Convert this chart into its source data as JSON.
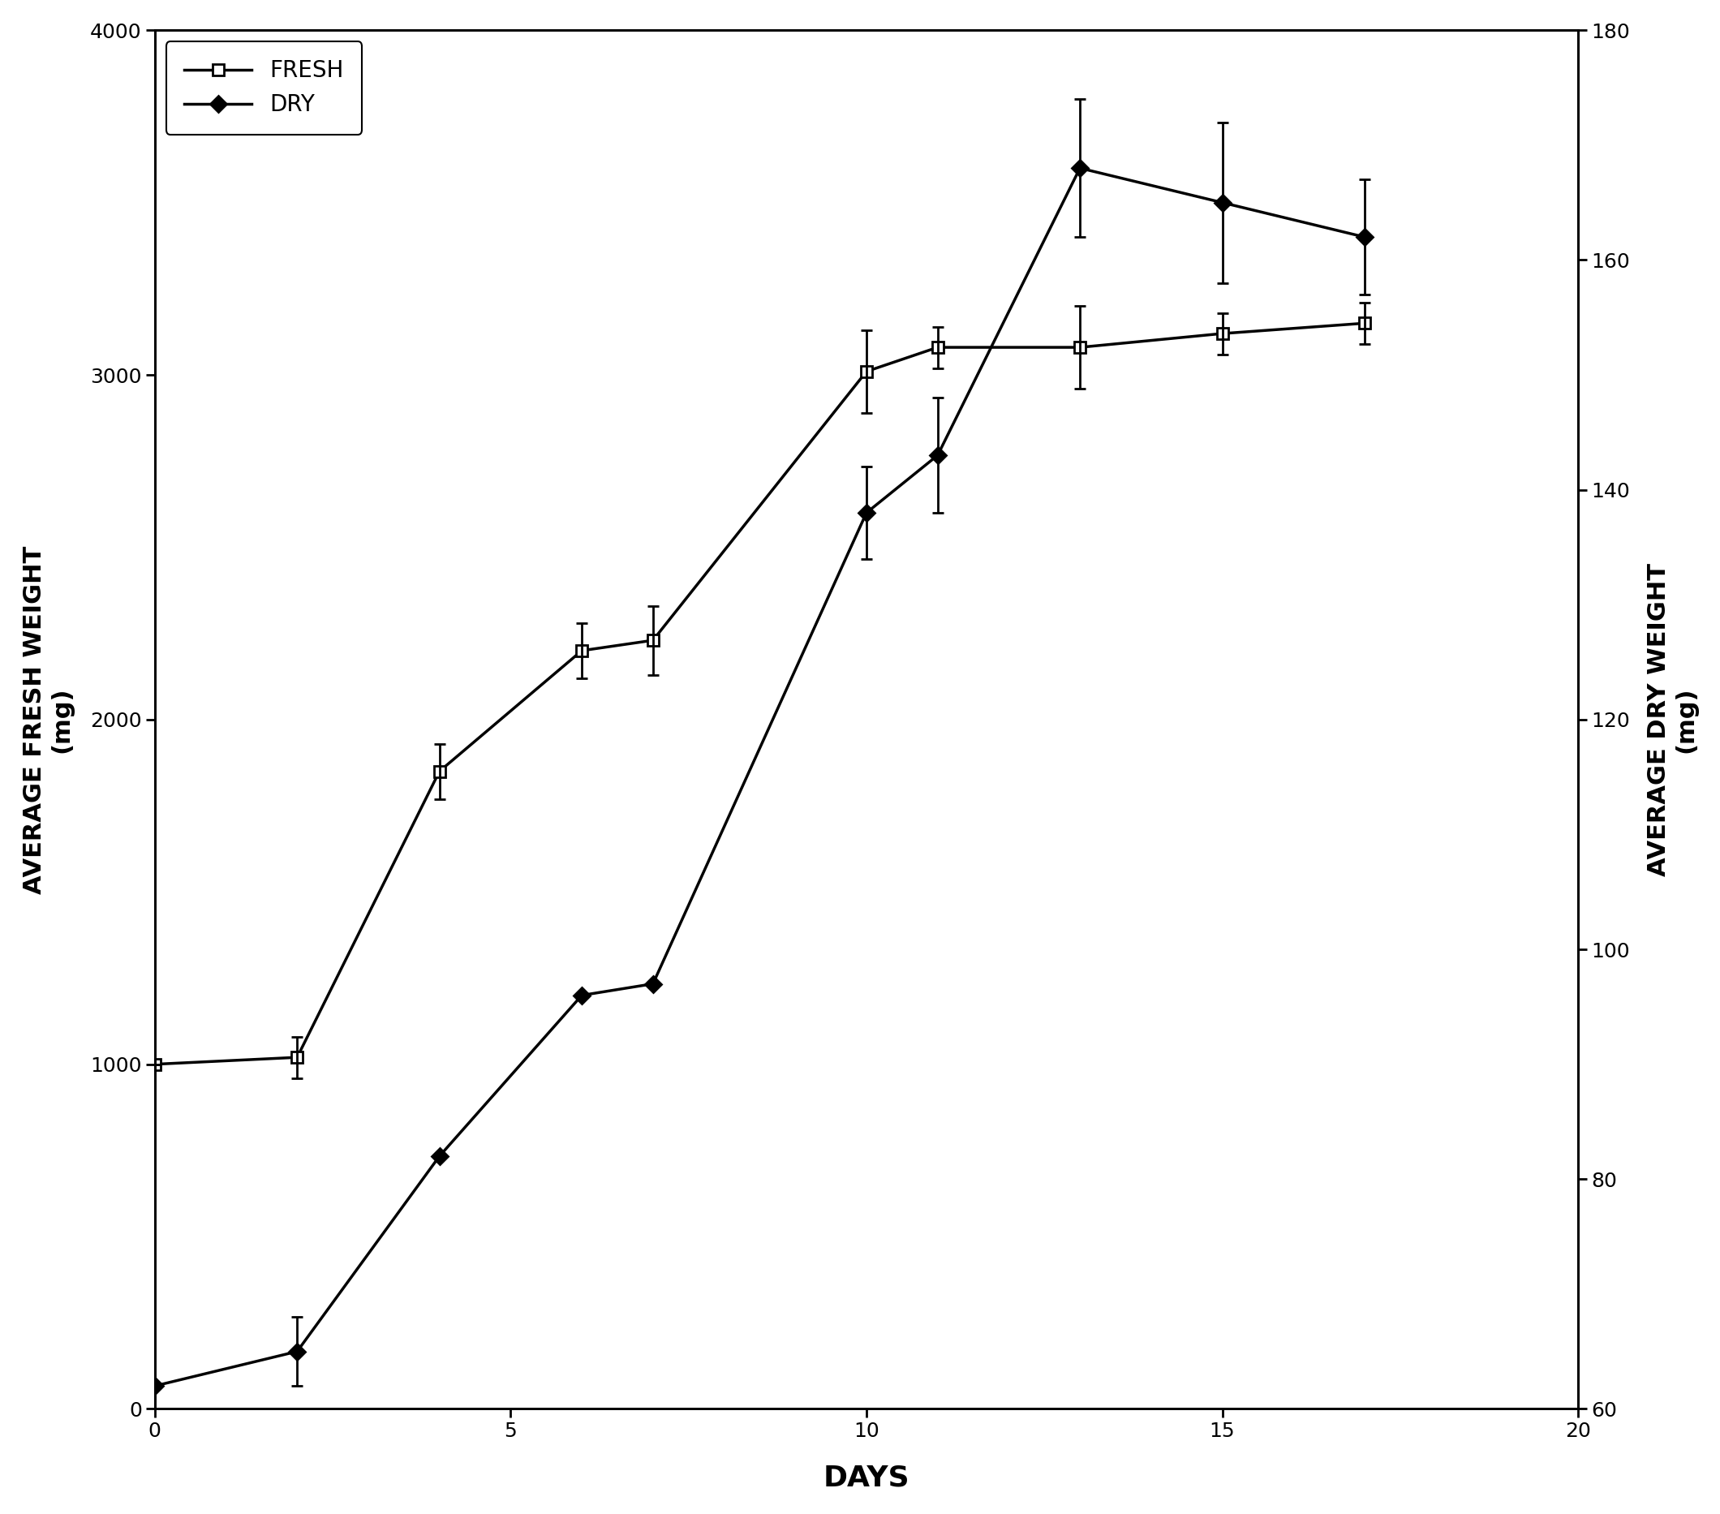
{
  "fresh_x": [
    0,
    2,
    4,
    6,
    7,
    10,
    11,
    13,
    15,
    17
  ],
  "fresh_y": [
    1000,
    1020,
    1850,
    2200,
    2230,
    3010,
    3080,
    3080,
    3120,
    3150
  ],
  "fresh_yerr": [
    0,
    60,
    80,
    80,
    100,
    120,
    60,
    120,
    60,
    60
  ],
  "dry_x": [
    0,
    2,
    4,
    6,
    7,
    10,
    11,
    13,
    15,
    17
  ],
  "dry_y": [
    62,
    65,
    82,
    96,
    97,
    138,
    143,
    168,
    165,
    162
  ],
  "dry_yerr": [
    0,
    3,
    0,
    0,
    0,
    4,
    5,
    6,
    7,
    5
  ],
  "xlabel": "DAYS",
  "ylabel_left": "AVERAGE FRESH WEIGHT\n(mg)",
  "ylabel_right": "AVERAGE DRY WEIGHT\n(mg)",
  "xlim": [
    0,
    20
  ],
  "ylim_left": [
    0,
    4000
  ],
  "ylim_right": [
    60,
    180
  ],
  "xticks": [
    0,
    5,
    10,
    15,
    20
  ],
  "yticks_left": [
    0,
    1000,
    2000,
    3000,
    4000
  ],
  "yticks_right": [
    60,
    80,
    100,
    120,
    140,
    160,
    180
  ],
  "legend_fresh": "FRESH",
  "legend_dry": "DRY",
  "line_color": "#000000",
  "background_color": "#ffffff",
  "fontsize_labels": 22,
  "fontsize_ticks": 18,
  "fontsize_legend": 20
}
